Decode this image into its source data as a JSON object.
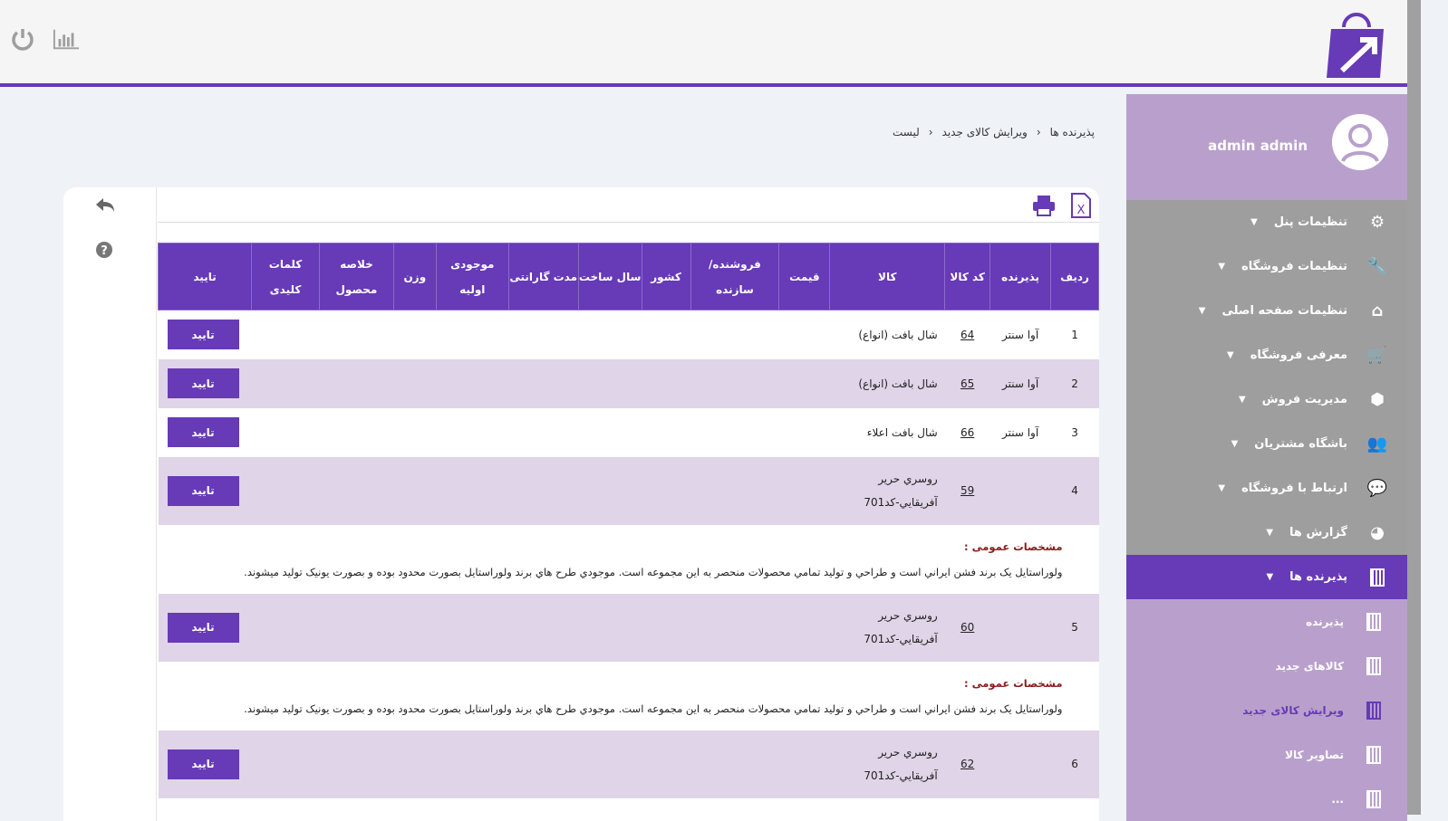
{
  "header": {
    "icons": [
      "power-icon",
      "chart-icon"
    ],
    "logo": "shopping-bag-logo"
  },
  "user": {
    "name": "admin admin"
  },
  "sidebar": {
    "items": [
      {
        "label": "تنظیمات پنل",
        "icon": "gears-icon",
        "glyph": "⚙"
      },
      {
        "label": "تنظیمات فروشگاه",
        "icon": "wrench-icon",
        "glyph": "🔧"
      },
      {
        "label": "تنظیمات صفحه اصلی",
        "icon": "home-icon",
        "glyph": "⌂"
      },
      {
        "label": "معرفی فروشگاه",
        "icon": "cart-icon",
        "glyph": "🛒"
      },
      {
        "label": "مدیریت فروش",
        "icon": "cube-icon",
        "glyph": "⬢"
      },
      {
        "label": "باشگاه مشتریان",
        "icon": "users-icon",
        "glyph": "👥"
      },
      {
        "label": "ارتباط با فروشگاه",
        "icon": "comment-icon",
        "glyph": "💬"
      },
      {
        "label": "گزارش ها",
        "icon": "pie-chart-icon",
        "glyph": "◕"
      },
      {
        "label": "پذیرنده ها",
        "icon": "building-icon",
        "active": true
      }
    ],
    "sub": [
      {
        "label": "پذیرنده"
      },
      {
        "label": "کالاهای جدید"
      },
      {
        "label": "ویرایش کالای جدید",
        "current": true
      },
      {
        "label": "تصاویر کالا"
      },
      {
        "label": "..."
      }
    ]
  },
  "breadcrumb": [
    "پذیرنده ها",
    "ویرایش کالای جدید",
    "لیست"
  ],
  "table": {
    "headers": [
      "ردیف",
      "پذیرنده",
      "کد کالا",
      "کالا",
      "قیمت",
      "فروشنده/ سازنده",
      "کشور",
      "سال ساخت",
      "مدت گارانتی",
      "موجودی اولیه",
      "وزن",
      "خلاصه محصول",
      "کلمات کلیدی",
      "تایید"
    ],
    "rows": [
      {
        "n": "1",
        "acceptor": "آوا سنتر",
        "code": "64",
        "item": "شال بافت (انواع)"
      },
      {
        "n": "2",
        "acceptor": "آوا سنتر",
        "code": "65",
        "item": "شال بافت (انواع)"
      },
      {
        "n": "3",
        "acceptor": "آوا سنتر",
        "code": "66",
        "item": "شال بافت اعلاء"
      },
      {
        "n": "4",
        "acceptor": "",
        "code": "59",
        "item": "روسري حرير\nآفريقايي-كد701",
        "desc_title": "مشخصات عمومی :",
        "desc": "ولوراستایل یک برند فشن ایراني است و  طراحي و تولید تمامي محصولات منحصر به این مجموعه است. موجودي طرح هاي برند ولوراستایل بصورت محدود بوده  و بصورت یونیک تولید میشوند."
      },
      {
        "n": "5",
        "acceptor": "",
        "code": "60",
        "item": "روسري حرير\nآفريقايي-كد701",
        "desc_title": "مشخصات عمومی :",
        "desc": "ولوراستایل یک برند فشن ایراني است و  طراحي و تولید تمامي محصولات منحصر به این مجموعه است. موجودي طرح هاي برند ولوراستایل بصورت محدود بوده  و بصورت یونیک تولید میشوند."
      },
      {
        "n": "6",
        "acceptor": "",
        "code": "62",
        "item": "روسري حرير\nآفريقايي-كد701"
      }
    ],
    "confirm_label": "تایید"
  },
  "colors": {
    "accent": "#673ab7",
    "lavender": "#b9a0cc",
    "row_alt": "#e0d4e8"
  }
}
